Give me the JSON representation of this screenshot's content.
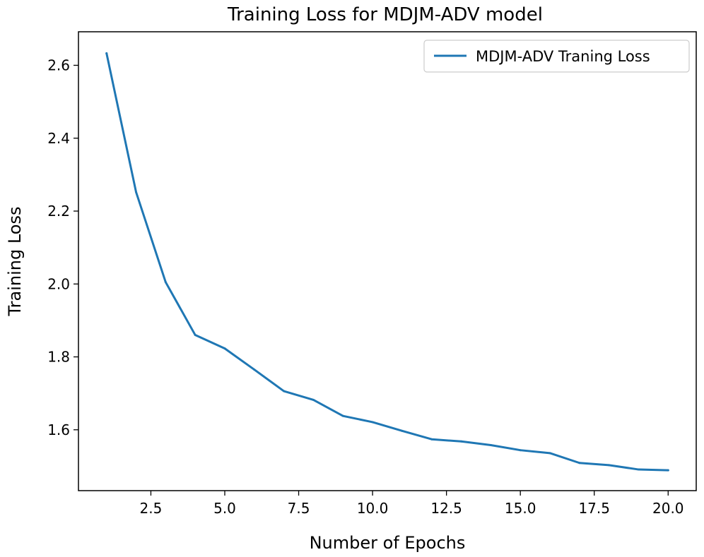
{
  "chart_data": {
    "type": "line",
    "title": "Training Loss for MDJM-ADV model",
    "xlabel": "Number of Epochs",
    "ylabel": "Training Loss",
    "xlim": [
      0.05,
      20.95
    ],
    "ylim": [
      1.433,
      2.692
    ],
    "xticks": [
      2.5,
      5.0,
      7.5,
      10.0,
      12.5,
      15.0,
      17.5,
      20.0
    ],
    "xtick_labels": [
      "2.5",
      "5.0",
      "7.5",
      "10.0",
      "12.5",
      "15.0",
      "17.5",
      "20.0"
    ],
    "yticks": [
      1.6,
      1.8,
      2.0,
      2.2,
      2.4,
      2.6
    ],
    "ytick_labels": [
      "1.6",
      "1.8",
      "2.0",
      "2.2",
      "2.4",
      "2.6"
    ],
    "grid": false,
    "legend_position": "top-right",
    "series": [
      {
        "name": "MDJM-ADV Traning Loss",
        "color": "#1f77b4",
        "x": [
          1,
          2,
          3,
          4,
          5,
          6,
          7,
          8,
          9,
          10,
          11,
          12,
          13,
          14,
          15,
          16,
          17,
          18,
          19,
          20
        ],
        "y": [
          2.633,
          2.252,
          2.005,
          1.86,
          1.823,
          1.765,
          1.706,
          1.682,
          1.638,
          1.621,
          1.597,
          1.574,
          1.568,
          1.558,
          1.544,
          1.536,
          1.509,
          1.503,
          1.491,
          1.489
        ]
      }
    ]
  }
}
